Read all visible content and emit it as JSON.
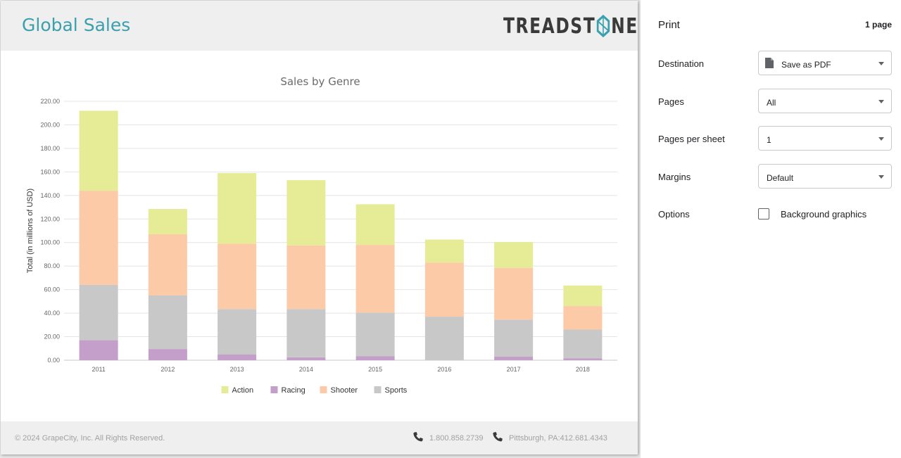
{
  "report": {
    "title": "Global Sales",
    "logo": {
      "text_left": "TREADST",
      "text_right": "NE"
    }
  },
  "footer": {
    "copyright": "© 2024 GrapeCity, Inc. All Rights Reserved.",
    "phone": "1.800.858.2739",
    "location": "Pittsburgh, PA:412.681.4343",
    "icons": [
      "phone-icon",
      "phone-icon"
    ]
  },
  "print": {
    "title": "Print",
    "page_count": "1 page",
    "destination": {
      "label": "Destination",
      "value": "Save as PDF"
    },
    "pages": {
      "label": "Pages",
      "value": "All"
    },
    "pages_per_sheet": {
      "label": "Pages per sheet",
      "value": "1"
    },
    "margins": {
      "label": "Margins",
      "value": "Default"
    },
    "options": {
      "label": "Options",
      "checkbox_label": "Background graphics",
      "checked": false
    }
  },
  "chart_data": {
    "type": "bar",
    "stacked": true,
    "title": "Sales by Genre",
    "xlabel": "",
    "ylabel": "Total (in millions of USD)",
    "ylim": [
      0,
      220
    ],
    "yticks": [
      "0.00",
      "20.00",
      "40.00",
      "60.00",
      "80.00",
      "100.00",
      "120.00",
      "140.00",
      "160.00",
      "180.00",
      "200.00",
      "220.00"
    ],
    "grid": true,
    "legend_position": "bottom",
    "categories": [
      "2011",
      "2012",
      "2013",
      "2014",
      "2015",
      "2016",
      "2017",
      "2018"
    ],
    "series": [
      {
        "name": "Racing",
        "color": "#c39fc9",
        "values": [
          17,
          9.5,
          5,
          2.5,
          3.5,
          0,
          3,
          1.5
        ]
      },
      {
        "name": "Sports",
        "color": "#c8c8c8",
        "values": [
          47,
          45.5,
          38.5,
          41,
          37,
          37,
          31.5,
          24.5
        ]
      },
      {
        "name": "Shooter",
        "color": "#fdcaa8",
        "values": [
          80,
          52,
          55.5,
          54,
          57.5,
          46,
          44,
          20
        ]
      },
      {
        "name": "Action",
        "color": "#e6ec96",
        "values": [
          68,
          21.5,
          60,
          55.5,
          34.5,
          19.5,
          22,
          17.5
        ]
      }
    ],
    "legend_order": [
      "Action",
      "Racing",
      "Shooter",
      "Sports"
    ]
  }
}
